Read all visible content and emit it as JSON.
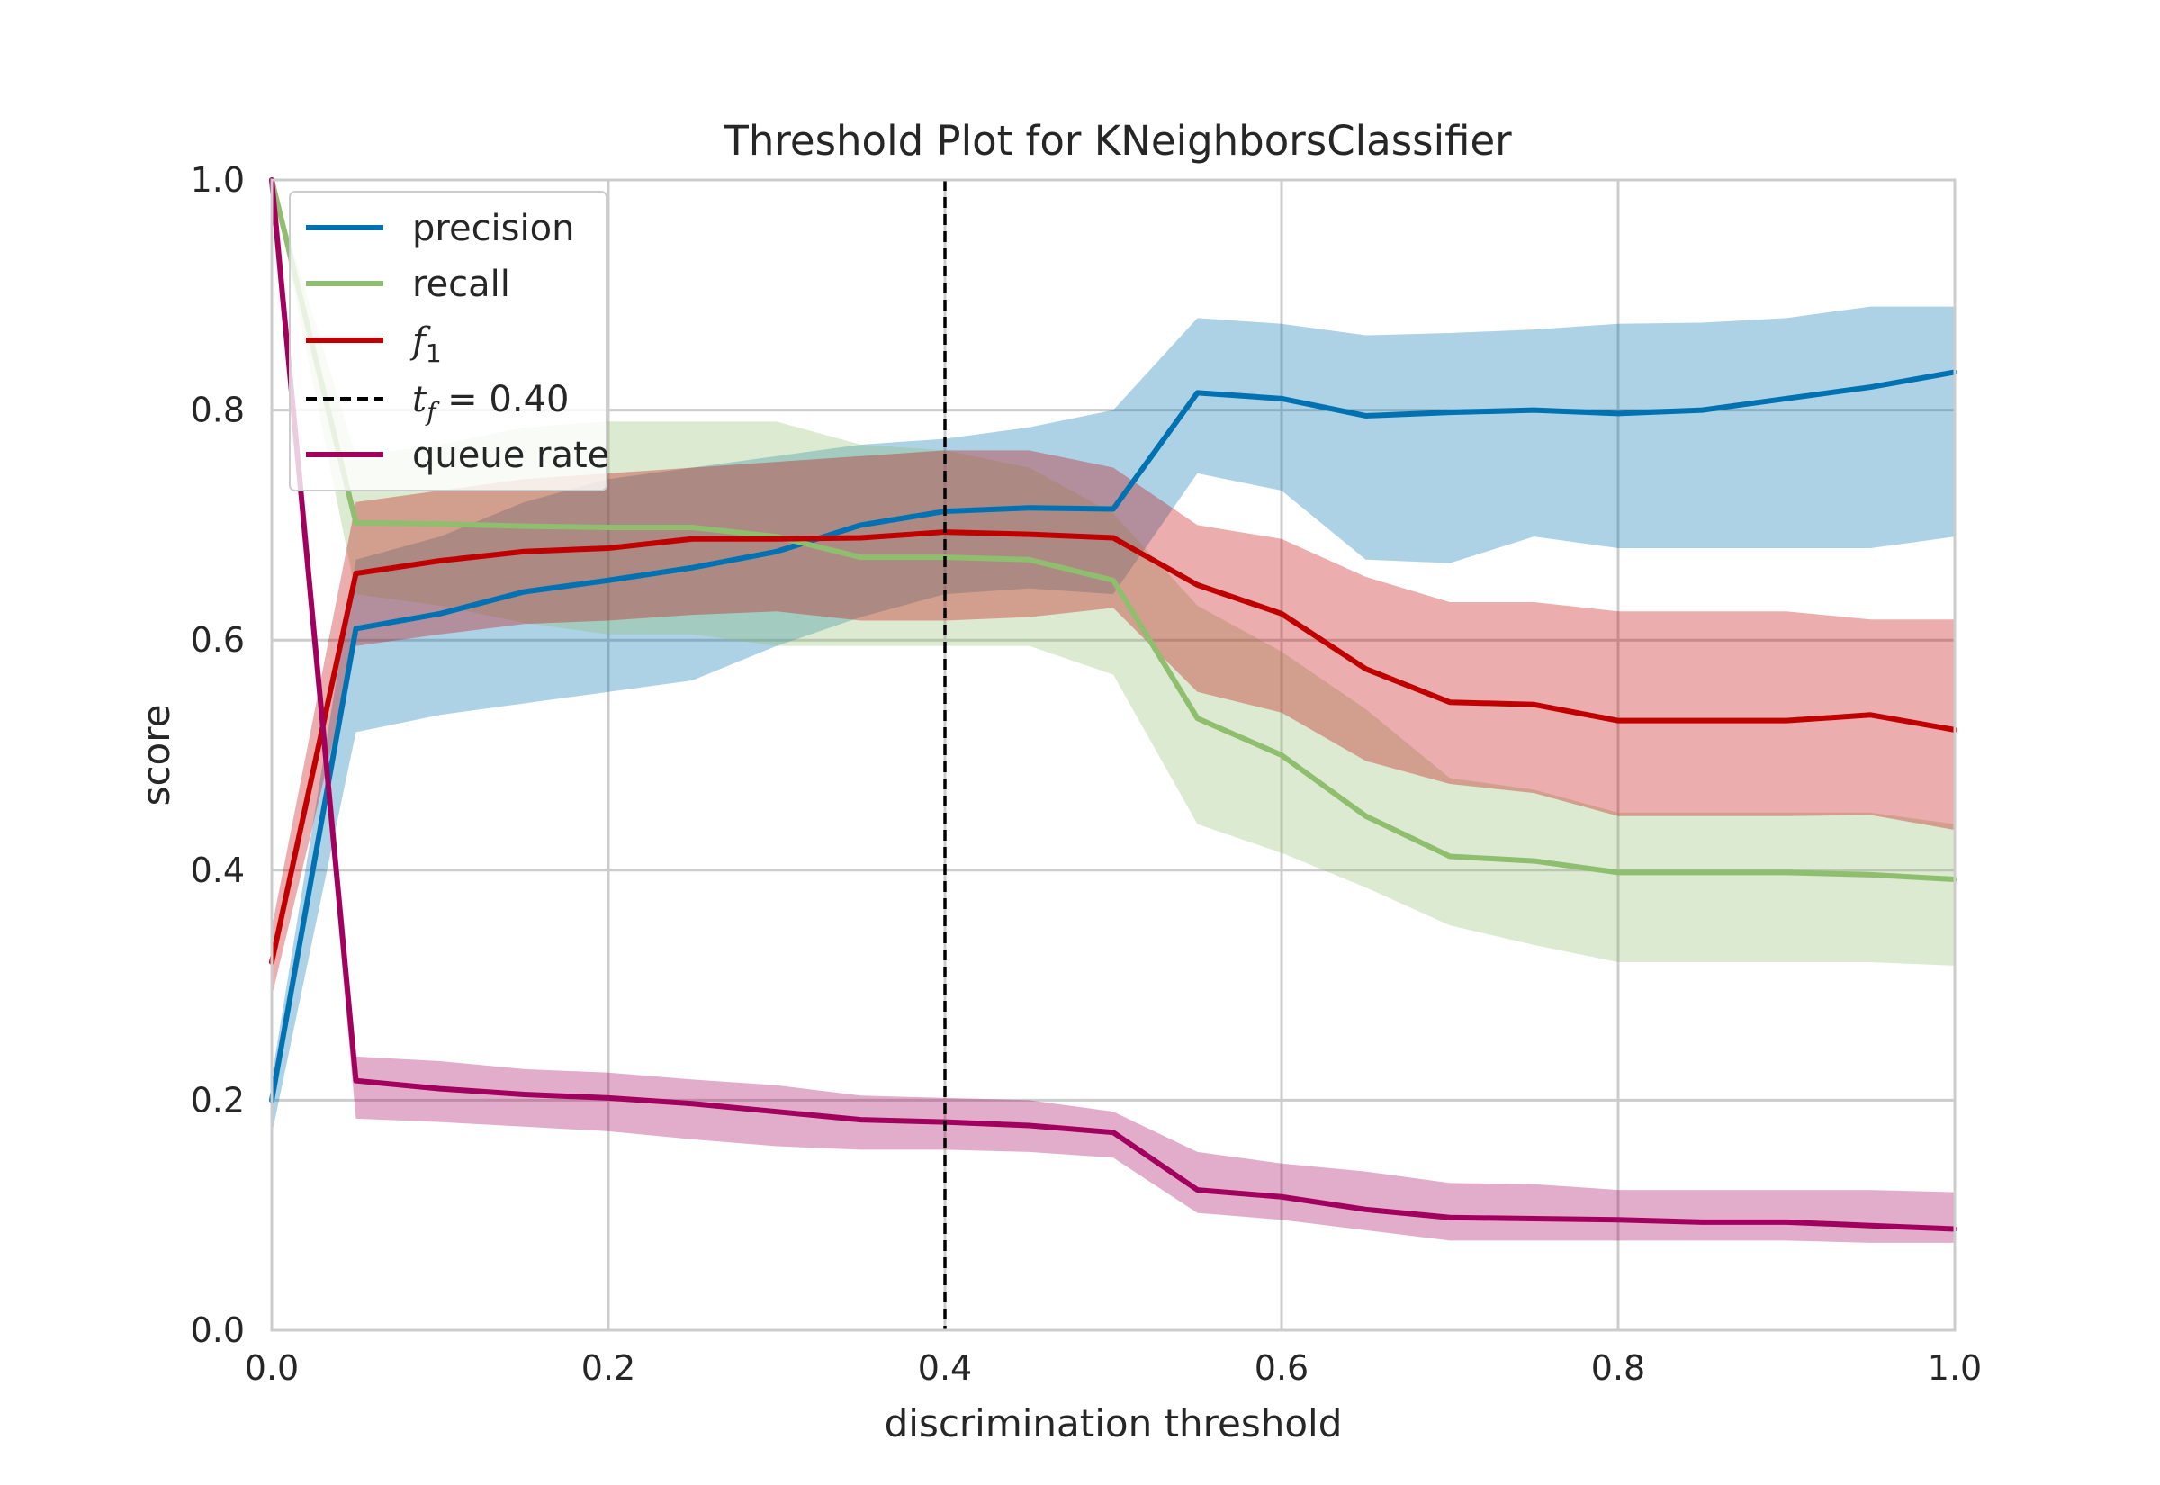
{
  "chart_data": {
    "type": "line",
    "title": "Threshold Plot for KNeighborsClassifier",
    "xlabel": "discrimination threshold",
    "ylabel": "score",
    "xlim": [
      0,
      1
    ],
    "ylim": [
      0,
      1
    ],
    "grid": true,
    "legend_position": "top-left",
    "x_ticks": [
      "0.0",
      "0.2",
      "0.4",
      "0.6",
      "0.8",
      "1.0"
    ],
    "y_ticks": [
      "0.0",
      "0.2",
      "0.4",
      "0.6",
      "0.8",
      "1.0"
    ],
    "x": [
      0.0,
      0.05,
      0.1,
      0.15,
      0.2,
      0.25,
      0.3,
      0.35,
      0.4,
      0.45,
      0.5,
      0.55,
      0.6,
      0.65,
      0.7,
      0.75,
      0.8,
      0.85,
      0.9,
      0.95,
      1.0
    ],
    "series": [
      {
        "name": "precision",
        "color": "#0072b2",
        "values": [
          0.2,
          0.61,
          0.623,
          0.642,
          0.652,
          0.663,
          0.677,
          0.7,
          0.712,
          0.715,
          0.714,
          0.815,
          0.81,
          0.795,
          0.798,
          0.8,
          0.797,
          0.8,
          0.81,
          0.82,
          0.833
        ],
        "band_upper": [
          0.22,
          0.67,
          0.69,
          0.72,
          0.74,
          0.75,
          0.76,
          0.77,
          0.775,
          0.785,
          0.8,
          0.88,
          0.875,
          0.865,
          0.867,
          0.87,
          0.875,
          0.876,
          0.88,
          0.89,
          0.89
        ],
        "band_lower": [
          0.17,
          0.52,
          0.535,
          0.545,
          0.555,
          0.565,
          0.595,
          0.62,
          0.64,
          0.645,
          0.64,
          0.745,
          0.73,
          0.67,
          0.667,
          0.69,
          0.68,
          0.68,
          0.68,
          0.68,
          0.69
        ]
      },
      {
        "name": "recall",
        "color": "#8fbe6f",
        "values": [
          1.0,
          0.702,
          0.701,
          0.699,
          0.698,
          0.698,
          0.69,
          0.672,
          0.672,
          0.67,
          0.652,
          0.532,
          0.5,
          0.447,
          0.412,
          0.408,
          0.398,
          0.398,
          0.398,
          0.396,
          0.392
        ],
        "band_upper": [
          1.0,
          0.76,
          0.77,
          0.785,
          0.79,
          0.79,
          0.79,
          0.77,
          0.765,
          0.75,
          0.71,
          0.63,
          0.59,
          0.54,
          0.48,
          0.47,
          0.45,
          0.45,
          0.45,
          0.45,
          0.44
        ],
        "band_lower": [
          1.0,
          0.64,
          0.63,
          0.615,
          0.605,
          0.605,
          0.595,
          0.595,
          0.595,
          0.595,
          0.57,
          0.44,
          0.415,
          0.385,
          0.352,
          0.335,
          0.32,
          0.32,
          0.32,
          0.32,
          0.317
        ]
      },
      {
        "name": "f1",
        "label_main": "f",
        "label_sub": "1",
        "color": "#c00000",
        "values": [
          0.32,
          0.658,
          0.669,
          0.677,
          0.68,
          0.688,
          0.688,
          0.689,
          0.694,
          0.692,
          0.689,
          0.648,
          0.623,
          0.575,
          0.546,
          0.544,
          0.53,
          0.53,
          0.53,
          0.535,
          0.522
        ],
        "band_upper": [
          0.35,
          0.72,
          0.73,
          0.74,
          0.745,
          0.75,
          0.755,
          0.76,
          0.765,
          0.765,
          0.75,
          0.7,
          0.688,
          0.655,
          0.633,
          0.633,
          0.625,
          0.625,
          0.625,
          0.618,
          0.618
        ],
        "band_lower": [
          0.29,
          0.595,
          0.605,
          0.614,
          0.617,
          0.622,
          0.625,
          0.617,
          0.617,
          0.62,
          0.628,
          0.555,
          0.537,
          0.495,
          0.475,
          0.467,
          0.447,
          0.447,
          0.447,
          0.448,
          0.435
        ]
      },
      {
        "name": "queue rate",
        "color": "#a2005e",
        "values": [
          1.0,
          0.217,
          0.21,
          0.205,
          0.202,
          0.197,
          0.19,
          0.183,
          0.181,
          0.178,
          0.172,
          0.122,
          0.116,
          0.105,
          0.098,
          0.097,
          0.096,
          0.094,
          0.094,
          0.091,
          0.088
        ],
        "band_upper": [
          1.0,
          0.238,
          0.234,
          0.227,
          0.224,
          0.218,
          0.213,
          0.204,
          0.202,
          0.2,
          0.19,
          0.155,
          0.145,
          0.138,
          0.128,
          0.127,
          0.122,
          0.122,
          0.122,
          0.122,
          0.12
        ],
        "band_lower": [
          1.0,
          0.184,
          0.181,
          0.177,
          0.173,
          0.166,
          0.16,
          0.157,
          0.157,
          0.155,
          0.15,
          0.102,
          0.096,
          0.087,
          0.078,
          0.078,
          0.078,
          0.078,
          0.078,
          0.076,
          0.076
        ]
      }
    ],
    "threshold": {
      "x": 0.4,
      "label_main": "t",
      "label_sub": "f",
      "label_suffix": " = 0.40",
      "color": "#000000"
    }
  }
}
